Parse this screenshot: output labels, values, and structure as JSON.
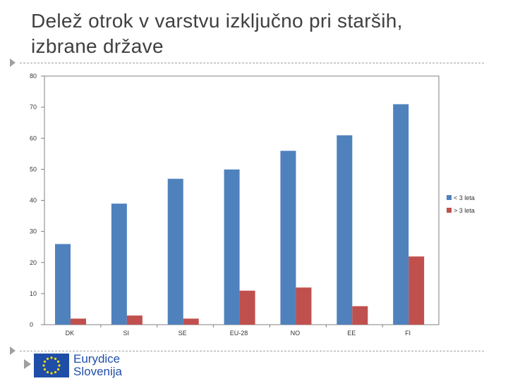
{
  "slide": {
    "title": "Delež otrok v varstvu izključno pri starših, izbrane države"
  },
  "logo": {
    "line1": "Eurydice",
    "line2": "Slovenija",
    "flag_icon": "eu-flag-icon"
  },
  "colors": {
    "series1": "#4f81bd",
    "series2": "#c0504d",
    "axis": "#808080",
    "plot_border": "#808080",
    "logo_blue": "#1f4ea8"
  },
  "chart_data": {
    "type": "bar",
    "title": "",
    "xlabel": "",
    "ylabel": "",
    "categories": [
      "DK",
      "SI",
      "SE",
      "EU-28",
      "NO",
      "EE",
      "FI"
    ],
    "series": [
      {
        "name": "< 3 leta",
        "values": [
          26,
          39,
          47,
          50,
          56,
          61,
          71
        ]
      },
      {
        "name": "> 3 leta",
        "values": [
          2,
          3,
          2,
          11,
          12,
          6,
          22
        ]
      }
    ],
    "ylim": [
      0,
      80
    ],
    "yticks": [
      0,
      10,
      20,
      30,
      40,
      50,
      60,
      70,
      80
    ],
    "grid": false,
    "legend": "right"
  }
}
